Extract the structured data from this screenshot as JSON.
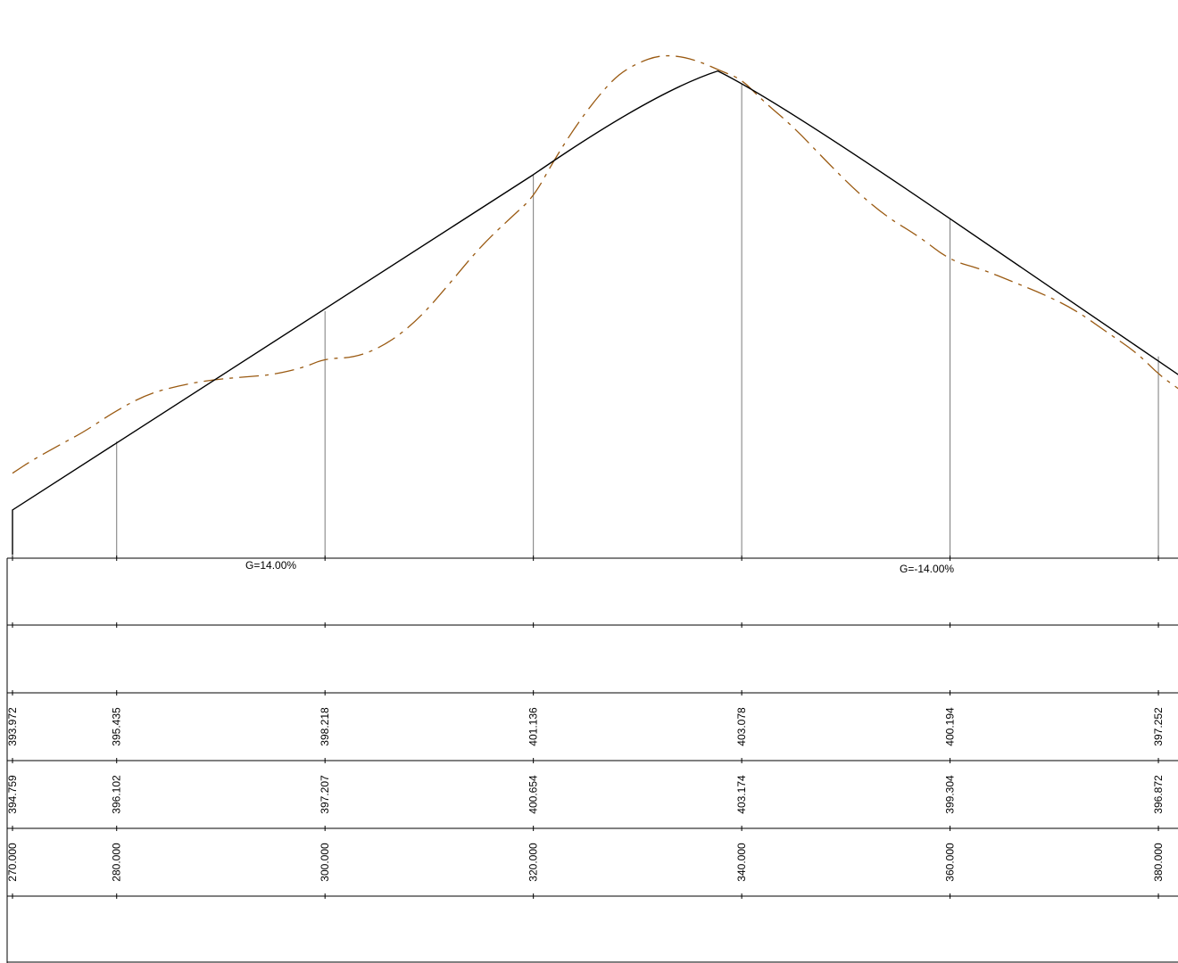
{
  "colors": {
    "design_line": "#000000",
    "ground_line": "#9a5a12",
    "grid_line": "#7a7a7a",
    "band_line": "#000000"
  },
  "grades": {
    "left": "G=14.00%",
    "right": "G=-14.00%"
  },
  "chart_data": {
    "type": "line",
    "title": "",
    "xlabel": "",
    "ylabel": "",
    "x_unit": "station",
    "stations": [
      "270.000",
      "280.000",
      "300.000",
      "320.000",
      "340.000",
      "360.000",
      "380.000"
    ],
    "design_elevations": [
      "393.972",
      "395.435",
      "398.218",
      "401.136",
      "403.078",
      "400.194",
      "397.252"
    ],
    "ground_elevations": [
      "394.759",
      "396.102",
      "397.207",
      "400.654",
      "403.174",
      "399.304",
      "396.872"
    ],
    "design_profile": {
      "description": "vertical crest curve",
      "grade_in_percent": 14.0,
      "grade_out_percent": -14.0,
      "points": [
        [
          270,
          393.972
        ],
        [
          280,
          395.435
        ],
        [
          300,
          398.218
        ],
        [
          320,
          401.136
        ],
        [
          337.7,
          403.35
        ],
        [
          340,
          403.078
        ],
        [
          360,
          400.194
        ],
        [
          380,
          397.252
        ],
        [
          382,
          396.85
        ]
      ]
    },
    "ground_profile": {
      "line_style": "dashed",
      "points": [
        [
          270,
          394.759
        ],
        [
          272,
          395.05
        ],
        [
          275,
          395.42
        ],
        [
          277,
          395.66
        ],
        [
          280,
          396.102
        ],
        [
          283,
          396.45
        ],
        [
          286,
          396.63
        ],
        [
          289,
          396.75
        ],
        [
          292,
          396.81
        ],
        [
          295,
          396.86
        ],
        [
          298,
          397.02
        ],
        [
          300,
          397.207
        ],
        [
          303,
          397.23
        ],
        [
          306,
          397.52
        ],
        [
          309,
          398.05
        ],
        [
          312,
          398.82
        ],
        [
          315,
          399.62
        ],
        [
          318,
          400.25
        ],
        [
          320,
          400.654
        ],
        [
          322,
          401.45
        ],
        [
          324,
          402.15
        ],
        [
          326,
          402.75
        ],
        [
          328,
          403.25
        ],
        [
          330,
          403.52
        ],
        [
          332,
          403.68
        ],
        [
          334,
          403.67
        ],
        [
          336,
          403.55
        ],
        [
          338,
          403.35
        ],
        [
          340,
          403.174
        ],
        [
          342,
          402.72
        ],
        [
          345,
          402.15
        ],
        [
          348,
          401.45
        ],
        [
          351,
          400.78
        ],
        [
          354,
          400.22
        ],
        [
          357,
          399.82
        ],
        [
          360,
          399.304
        ],
        [
          363,
          399.12
        ],
        [
          366,
          398.85
        ],
        [
          369,
          398.58
        ],
        [
          372,
          398.25
        ],
        [
          375,
          397.78
        ],
        [
          378,
          397.32
        ],
        [
          380,
          396.872
        ],
        [
          382,
          396.55
        ]
      ]
    },
    "bands": 6
  }
}
